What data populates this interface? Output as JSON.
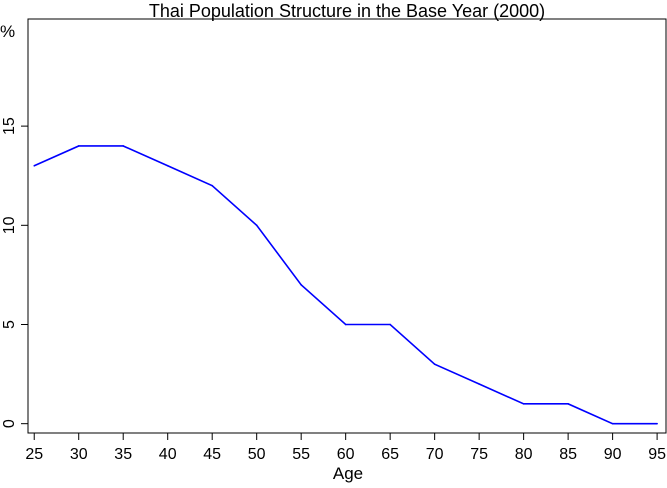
{
  "chart_data": {
    "type": "line",
    "title": "Thai Population Structure in the Base Year (2000)",
    "xlabel": "Age",
    "ylabel": "%",
    "x": [
      25,
      30,
      35,
      40,
      45,
      50,
      55,
      60,
      65,
      70,
      75,
      80,
      85,
      90,
      95
    ],
    "series": [
      {
        "values": [
          13,
          14,
          14,
          13,
          12,
          10,
          7,
          5,
          5,
          3,
          2,
          1,
          1,
          0,
          0
        ],
        "color": "#0000ff"
      }
    ],
    "xticks": [
      "25",
      "30",
      "35",
      "40",
      "45",
      "50",
      "55",
      "60",
      "65",
      "70",
      "75",
      "80",
      "85",
      "90",
      "95"
    ],
    "yticks": [
      "0",
      "5",
      "10",
      "15"
    ],
    "xlim": [
      24.3,
      96
    ],
    "ylim": [
      -0.47,
      20.4
    ],
    "grid": false,
    "legend": "none"
  }
}
